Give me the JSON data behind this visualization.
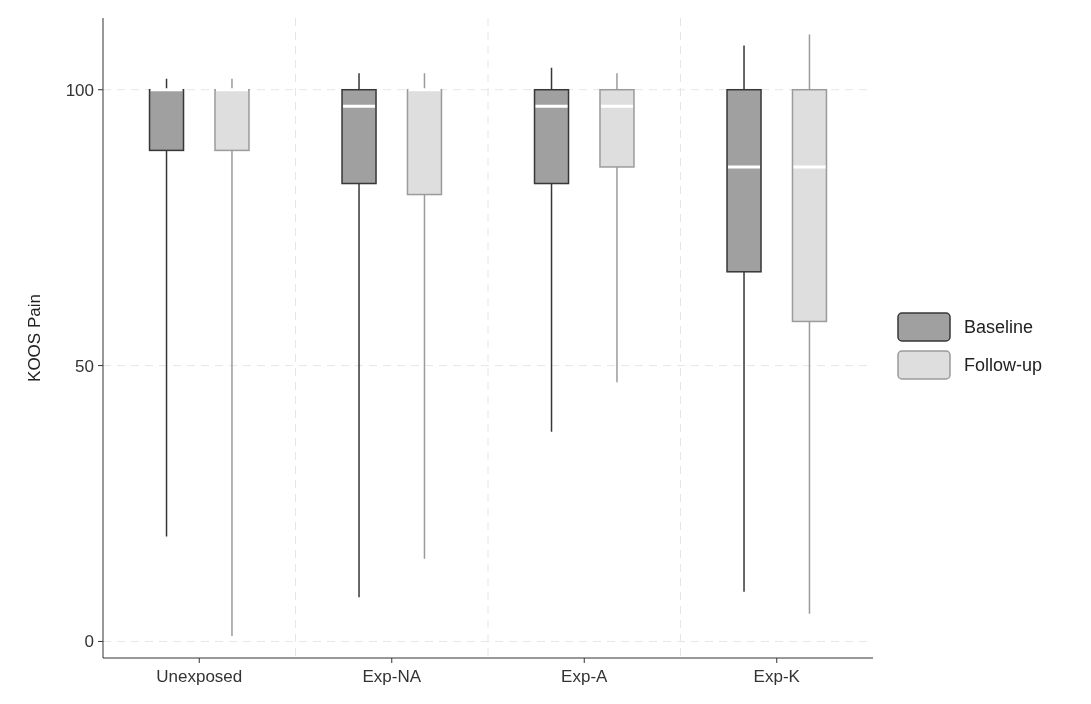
{
  "chart_data": {
    "type": "box",
    "ylabel": "KOOS Pain",
    "categories": [
      "Unexposed",
      "Exp-NA",
      "Exp-A",
      "Exp-K"
    ],
    "ylim": [
      -3,
      113
    ],
    "yticks": [
      0,
      50,
      100
    ],
    "grid": true,
    "legend": "right",
    "series": [
      {
        "name": "Baseline",
        "color": "#a0a0a0",
        "boxes": [
          {
            "low": 19,
            "q1": 89,
            "median": 100,
            "q3": 100,
            "high": 102
          },
          {
            "low": 8,
            "q1": 83,
            "median": 97,
            "q3": 100,
            "high": 103
          },
          {
            "low": 38,
            "q1": 83,
            "median": 97,
            "q3": 100,
            "high": 104
          },
          {
            "low": 9,
            "q1": 67,
            "median": 86,
            "q3": 100,
            "high": 108
          }
        ]
      },
      {
        "name": "Follow-up",
        "color": "#dedede",
        "boxes": [
          {
            "low": 1,
            "q1": 89,
            "median": 100,
            "q3": 100,
            "high": 102
          },
          {
            "low": 15,
            "q1": 81,
            "median": 100,
            "q3": 100,
            "high": 103
          },
          {
            "low": 47,
            "q1": 86,
            "median": 97,
            "q3": 100,
            "high": 103
          },
          {
            "low": 5,
            "q1": 58,
            "median": 86,
            "q3": 100,
            "high": 110
          }
        ]
      }
    ]
  }
}
